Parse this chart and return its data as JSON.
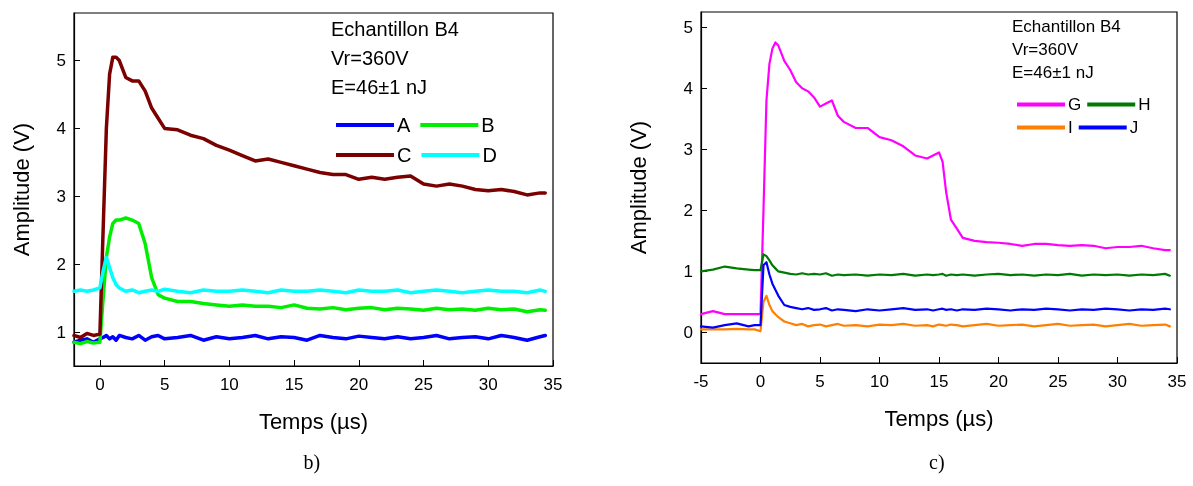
{
  "chart_data": [
    {
      "type": "line",
      "xlabel": "Temps (µs)",
      "ylabel": "Amplitude (V)",
      "xlim": [
        -2,
        35
      ],
      "ylim": [
        0.5,
        5.7
      ],
      "xticks": [
        0,
        5,
        10,
        15,
        20,
        25,
        30,
        35
      ],
      "yticks": [
        1,
        2,
        3,
        4,
        5
      ],
      "grid": false,
      "legend": "top right",
      "marker": "none",
      "line_style": "solid",
      "annotations": [
        "Echantillon B4",
        "Vr=360V",
        "E=46±1 nJ",
        "b)"
      ],
      "x": [
        -2,
        -1.5,
        -1,
        -0.5,
        0,
        0.25,
        0.5,
        0.75,
        1,
        1.25,
        1.5,
        2,
        2.5,
        3,
        3.5,
        4,
        4.5,
        5,
        6,
        7,
        8,
        9,
        10,
        11,
        12,
        13,
        14,
        15,
        16,
        17,
        18,
        19,
        20,
        21,
        22,
        23,
        24,
        25,
        26,
        27,
        28,
        29,
        30,
        31,
        32,
        33,
        34,
        34.4
      ],
      "series": [
        {
          "name": "A",
          "color": "#0000ff",
          "values": [
            0.85,
            0.88,
            0.9,
            0.85,
            0.9,
            0.92,
            0.95,
            0.9,
            0.93,
            0.88,
            0.95,
            0.92,
            0.9,
            0.95,
            0.88,
            0.93,
            0.95,
            0.9,
            0.92,
            0.95,
            0.88,
            0.93,
            0.9,
            0.92,
            0.95,
            0.9,
            0.93,
            0.92,
            0.88,
            0.95,
            0.92,
            0.9,
            0.94,
            0.92,
            0.9,
            0.93,
            0.9,
            0.92,
            0.95,
            0.9,
            0.92,
            0.93,
            0.9,
            0.95,
            0.92,
            0.88,
            0.93,
            0.95
          ]
        },
        {
          "name": "B",
          "color": "#00ee00",
          "values": [
            0.85,
            0.83,
            0.86,
            0.84,
            0.85,
            1.5,
            2.1,
            2.4,
            2.6,
            2.65,
            2.65,
            2.68,
            2.65,
            2.6,
            2.3,
            1.8,
            1.55,
            1.5,
            1.45,
            1.45,
            1.42,
            1.4,
            1.38,
            1.4,
            1.38,
            1.38,
            1.36,
            1.4,
            1.35,
            1.34,
            1.36,
            1.33,
            1.35,
            1.36,
            1.33,
            1.35,
            1.34,
            1.32,
            1.35,
            1.33,
            1.34,
            1.32,
            1.35,
            1.33,
            1.34,
            1.3,
            1.33,
            1.32
          ]
        },
        {
          "name": "C",
          "color": "#7b0000",
          "values": [
            0.95,
            0.92,
            0.98,
            0.95,
            0.97,
            2.5,
            4.0,
            4.8,
            5.05,
            5.05,
            5.0,
            4.75,
            4.7,
            4.7,
            4.55,
            4.3,
            4.15,
            4.0,
            3.98,
            3.9,
            3.85,
            3.75,
            3.68,
            3.6,
            3.52,
            3.55,
            3.5,
            3.45,
            3.4,
            3.35,
            3.32,
            3.32,
            3.25,
            3.28,
            3.25,
            3.28,
            3.3,
            3.18,
            3.15,
            3.18,
            3.15,
            3.1,
            3.08,
            3.1,
            3.07,
            3.02,
            3.05,
            3.05
          ]
        },
        {
          "name": "D",
          "color": "#00ffff",
          "values": [
            1.6,
            1.62,
            1.6,
            1.62,
            1.65,
            1.9,
            2.1,
            1.95,
            1.8,
            1.7,
            1.65,
            1.6,
            1.62,
            1.58,
            1.6,
            1.62,
            1.6,
            1.63,
            1.6,
            1.58,
            1.62,
            1.6,
            1.6,
            1.62,
            1.6,
            1.58,
            1.62,
            1.6,
            1.6,
            1.62,
            1.6,
            1.58,
            1.62,
            1.6,
            1.6,
            1.62,
            1.58,
            1.6,
            1.62,
            1.6,
            1.58,
            1.6,
            1.62,
            1.6,
            1.6,
            1.58,
            1.62,
            1.6
          ]
        }
      ]
    },
    {
      "type": "line",
      "xlabel": "Temps (µs)",
      "ylabel": "Amplitude (V)",
      "xlim": [
        -5,
        35
      ],
      "ylim": [
        -0.5,
        5.25
      ],
      "xticks": [
        -5,
        0,
        5,
        10,
        15,
        20,
        25,
        30,
        35
      ],
      "yticks": [
        0,
        1,
        2,
        3,
        4,
        5
      ],
      "grid": false,
      "legend": "top right",
      "marker": "none",
      "line_style": "solid",
      "annotations": [
        "Echantillon B4",
        "Vr=360V",
        "E=46±1 nJ",
        "c)"
      ],
      "x": [
        -5,
        -4,
        -3,
        -2,
        -1,
        -0.5,
        0,
        0.25,
        0.5,
        0.75,
        1,
        1.25,
        1.5,
        2,
        2.5,
        3,
        3.5,
        4,
        4.5,
        5,
        5.5,
        6,
        6.5,
        7,
        8,
        9,
        10,
        11,
        12,
        13,
        14,
        14.5,
        15,
        15.3,
        15.6,
        16,
        16.5,
        17,
        18,
        19,
        20,
        21,
        22,
        23,
        24,
        25,
        26,
        27,
        28,
        29,
        30,
        31,
        32,
        33,
        34,
        34.4
      ],
      "series": [
        {
          "name": "G",
          "color": "#ff00ff",
          "values": [
            0.3,
            0.35,
            0.3,
            0.3,
            0.3,
            0.3,
            0.3,
            2.0,
            3.8,
            4.4,
            4.65,
            4.75,
            4.7,
            4.45,
            4.3,
            4.1,
            4.0,
            3.95,
            3.85,
            3.7,
            3.75,
            3.8,
            3.55,
            3.45,
            3.35,
            3.35,
            3.2,
            3.15,
            3.05,
            2.9,
            2.85,
            2.9,
            2.95,
            2.8,
            2.3,
            1.85,
            1.7,
            1.55,
            1.5,
            1.48,
            1.47,
            1.45,
            1.42,
            1.45,
            1.45,
            1.43,
            1.42,
            1.43,
            1.42,
            1.38,
            1.4,
            1.4,
            1.42,
            1.38,
            1.35,
            1.35
          ]
        },
        {
          "name": "H",
          "color": "#007a00",
          "values": [
            1.0,
            1.03,
            1.08,
            1.05,
            1.03,
            1.02,
            1.02,
            1.28,
            1.25,
            1.18,
            1.1,
            1.05,
            1.0,
            0.98,
            0.96,
            0.95,
            0.97,
            0.95,
            0.96,
            0.95,
            0.97,
            0.93,
            0.95,
            0.94,
            0.95,
            0.93,
            0.95,
            0.94,
            0.96,
            0.93,
            0.95,
            0.94,
            0.95,
            0.96,
            0.93,
            0.95,
            0.94,
            0.95,
            0.93,
            0.95,
            0.96,
            0.94,
            0.95,
            0.93,
            0.95,
            0.94,
            0.96,
            0.93,
            0.95,
            0.94,
            0.95,
            0.93,
            0.95,
            0.94,
            0.96,
            0.93
          ]
        },
        {
          "name": "I",
          "color": "#ff8000",
          "values": [
            0.05,
            0.05,
            0.05,
            0.06,
            0.05,
            0.05,
            0.02,
            0.5,
            0.6,
            0.45,
            0.35,
            0.3,
            0.25,
            0.18,
            0.15,
            0.12,
            0.14,
            0.1,
            0.12,
            0.13,
            0.1,
            0.12,
            0.14,
            0.11,
            0.12,
            0.1,
            0.13,
            0.12,
            0.14,
            0.11,
            0.12,
            0.1,
            0.13,
            0.12,
            0.11,
            0.13,
            0.12,
            0.1,
            0.12,
            0.14,
            0.11,
            0.12,
            0.13,
            0.1,
            0.12,
            0.14,
            0.11,
            0.12,
            0.13,
            0.1,
            0.12,
            0.14,
            0.11,
            0.12,
            0.13,
            0.1
          ]
        },
        {
          "name": "J",
          "color": "#0000ff",
          "values": [
            0.1,
            0.08,
            0.12,
            0.15,
            0.1,
            0.12,
            0.12,
            1.1,
            1.15,
            0.95,
            0.8,
            0.7,
            0.6,
            0.45,
            0.42,
            0.4,
            0.38,
            0.4,
            0.37,
            0.38,
            0.4,
            0.36,
            0.38,
            0.37,
            0.35,
            0.38,
            0.36,
            0.38,
            0.4,
            0.37,
            0.38,
            0.36,
            0.38,
            0.39,
            0.37,
            0.38,
            0.36,
            0.38,
            0.37,
            0.39,
            0.38,
            0.36,
            0.38,
            0.37,
            0.39,
            0.38,
            0.36,
            0.38,
            0.37,
            0.39,
            0.38,
            0.36,
            0.38,
            0.37,
            0.39,
            0.38
          ]
        }
      ]
    }
  ]
}
